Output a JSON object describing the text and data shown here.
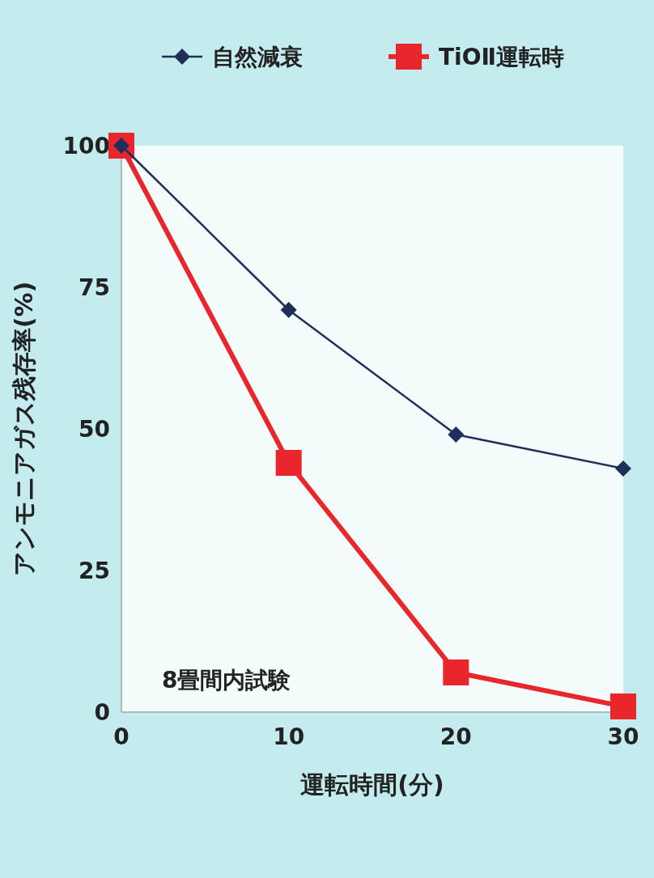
{
  "chart_data": {
    "type": "line",
    "xlabel": "運転時間(分)",
    "ylabel": "アンモニアガス残存率(%)",
    "annotations": [
      "8畳間内試験"
    ],
    "x": [
      0,
      10,
      20,
      30
    ],
    "xlim": [
      0,
      30
    ],
    "xticks": [
      0,
      10,
      20,
      30
    ],
    "ylim": [
      0,
      100
    ],
    "yticks": [
      0,
      25,
      50,
      75,
      100
    ],
    "grid": false,
    "legend": "right",
    "series": [
      {
        "name": "自然減衰",
        "color": "#1f2f5a",
        "values": [
          100,
          71,
          49,
          43
        ],
        "marker": "diamond"
      },
      {
        "name": "TiOⅡ運転時",
        "color": "#e8262b",
        "values": [
          100,
          44,
          7,
          1
        ],
        "marker": "square"
      }
    ]
  }
}
